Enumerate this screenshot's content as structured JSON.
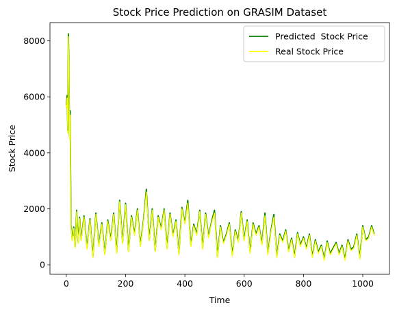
{
  "chart_data": {
    "type": "line",
    "title": "Stock Price Prediction on GRASIM Dataset",
    "xlabel": "Time",
    "ylabel": "Stock Price",
    "xlim": [
      -55,
      1090
    ],
    "ylim": [
      -340,
      8650
    ],
    "xticks": [
      0,
      200,
      400,
      600,
      800,
      1000
    ],
    "yticks": [
      0,
      2000,
      4000,
      6000,
      8000
    ],
    "grid": false,
    "legend_position": "top-right",
    "series": [
      {
        "name": "Predicted  Stock Price",
        "color": "#008000",
        "x": [
          0,
          3,
          5,
          7,
          9,
          11,
          13,
          16,
          20,
          25,
          30,
          35,
          40,
          45,
          50,
          60,
          70,
          80,
          90,
          100,
          110,
          120,
          130,
          140,
          150,
          160,
          170,
          180,
          190,
          200,
          210,
          220,
          230,
          240,
          250,
          260,
          270,
          280,
          290,
          300,
          310,
          320,
          330,
          340,
          350,
          360,
          370,
          380,
          390,
          400,
          410,
          420,
          430,
          440,
          450,
          460,
          470,
          480,
          490,
          500,
          510,
          520,
          530,
          540,
          550,
          560,
          570,
          580,
          590,
          600,
          610,
          620,
          630,
          640,
          650,
          660,
          670,
          680,
          690,
          700,
          710,
          720,
          730,
          740,
          750,
          760,
          770,
          780,
          790,
          800,
          810,
          820,
          830,
          840,
          850,
          860,
          870,
          880,
          890,
          900,
          910,
          920,
          930,
          940,
          950,
          960,
          970,
          980,
          990,
          1000,
          1010,
          1020,
          1030,
          1038
        ],
        "y": [
          5700,
          6050,
          4800,
          8250,
          7200,
          4600,
          5500,
          1400,
          900,
          1350,
          650,
          1950,
          800,
          1700,
          900,
          1750,
          600,
          1650,
          300,
          1850,
          700,
          1500,
          400,
          1600,
          900,
          1850,
          450,
          2300,
          800,
          2200,
          500,
          1750,
          1100,
          2000,
          700,
          1550,
          2700,
          900,
          2000,
          500,
          1750,
          1300,
          2000,
          600,
          1850,
          1050,
          1600,
          400,
          2050,
          1500,
          2300,
          700,
          1450,
          1100,
          1950,
          600,
          1850,
          1000,
          1550,
          1950,
          300,
          1400,
          800,
          1100,
          1500,
          350,
          1250,
          850,
          1900,
          900,
          1600,
          450,
          1500,
          1100,
          1400,
          750,
          1850,
          400,
          1200,
          1800,
          300,
          1100,
          850,
          1250,
          500,
          950,
          300,
          1150,
          700,
          1000,
          600,
          1100,
          300,
          900,
          450,
          700,
          200,
          850,
          400,
          600,
          800,
          400,
          700,
          200,
          900,
          550,
          650,
          1100,
          250,
          1400,
          900,
          1000,
          1400,
          1100
        ]
      },
      {
        "name": "Real Stock Price",
        "color": "#ffff00",
        "x": [
          0,
          3,
          5,
          7,
          9,
          11,
          13,
          16,
          20,
          25,
          30,
          35,
          40,
          45,
          50,
          60,
          70,
          80,
          90,
          100,
          110,
          120,
          130,
          140,
          150,
          160,
          170,
          180,
          190,
          200,
          210,
          220,
          230,
          240,
          250,
          260,
          270,
          280,
          290,
          300,
          310,
          320,
          330,
          340,
          350,
          360,
          370,
          380,
          390,
          400,
          410,
          420,
          430,
          440,
          450,
          460,
          470,
          480,
          490,
          500,
          510,
          520,
          530,
          540,
          550,
          560,
          570,
          580,
          590,
          600,
          610,
          620,
          630,
          640,
          650,
          660,
          670,
          680,
          690,
          700,
          710,
          720,
          730,
          740,
          750,
          760,
          770,
          780,
          790,
          800,
          810,
          820,
          830,
          840,
          850,
          860,
          870,
          880,
          890,
          900,
          910,
          920,
          930,
          940,
          950,
          960,
          970,
          980,
          990,
          1000,
          1010,
          1020,
          1030,
          1038
        ],
        "y": [
          5600,
          5950,
          4700,
          8150,
          7100,
          4500,
          5350,
          1350,
          850,
          1300,
          600,
          1900,
          750,
          1650,
          850,
          1700,
          550,
          1600,
          250,
          1800,
          650,
          1450,
          350,
          1550,
          850,
          1800,
          400,
          2250,
          750,
          2150,
          450,
          1700,
          1050,
          1950,
          650,
          1500,
          2600,
          850,
          1950,
          450,
          1700,
          1250,
          1950,
          550,
          1800,
          1000,
          1550,
          350,
          2000,
          1450,
          2200,
          650,
          1400,
          1050,
          1900,
          550,
          1800,
          950,
          1500,
          1850,
          250,
          1350,
          750,
          1050,
          1450,
          300,
          1200,
          800,
          1850,
          850,
          1550,
          400,
          1450,
          1050,
          1350,
          700,
          1750,
          350,
          1150,
          1700,
          250,
          1050,
          800,
          1200,
          450,
          900,
          250,
          1100,
          650,
          950,
          550,
          1050,
          250,
          850,
          400,
          650,
          150,
          800,
          350,
          550,
          750,
          350,
          650,
          150,
          850,
          500,
          600,
          1050,
          200,
          1350,
          850,
          950,
          1350,
          1050
        ]
      }
    ]
  }
}
